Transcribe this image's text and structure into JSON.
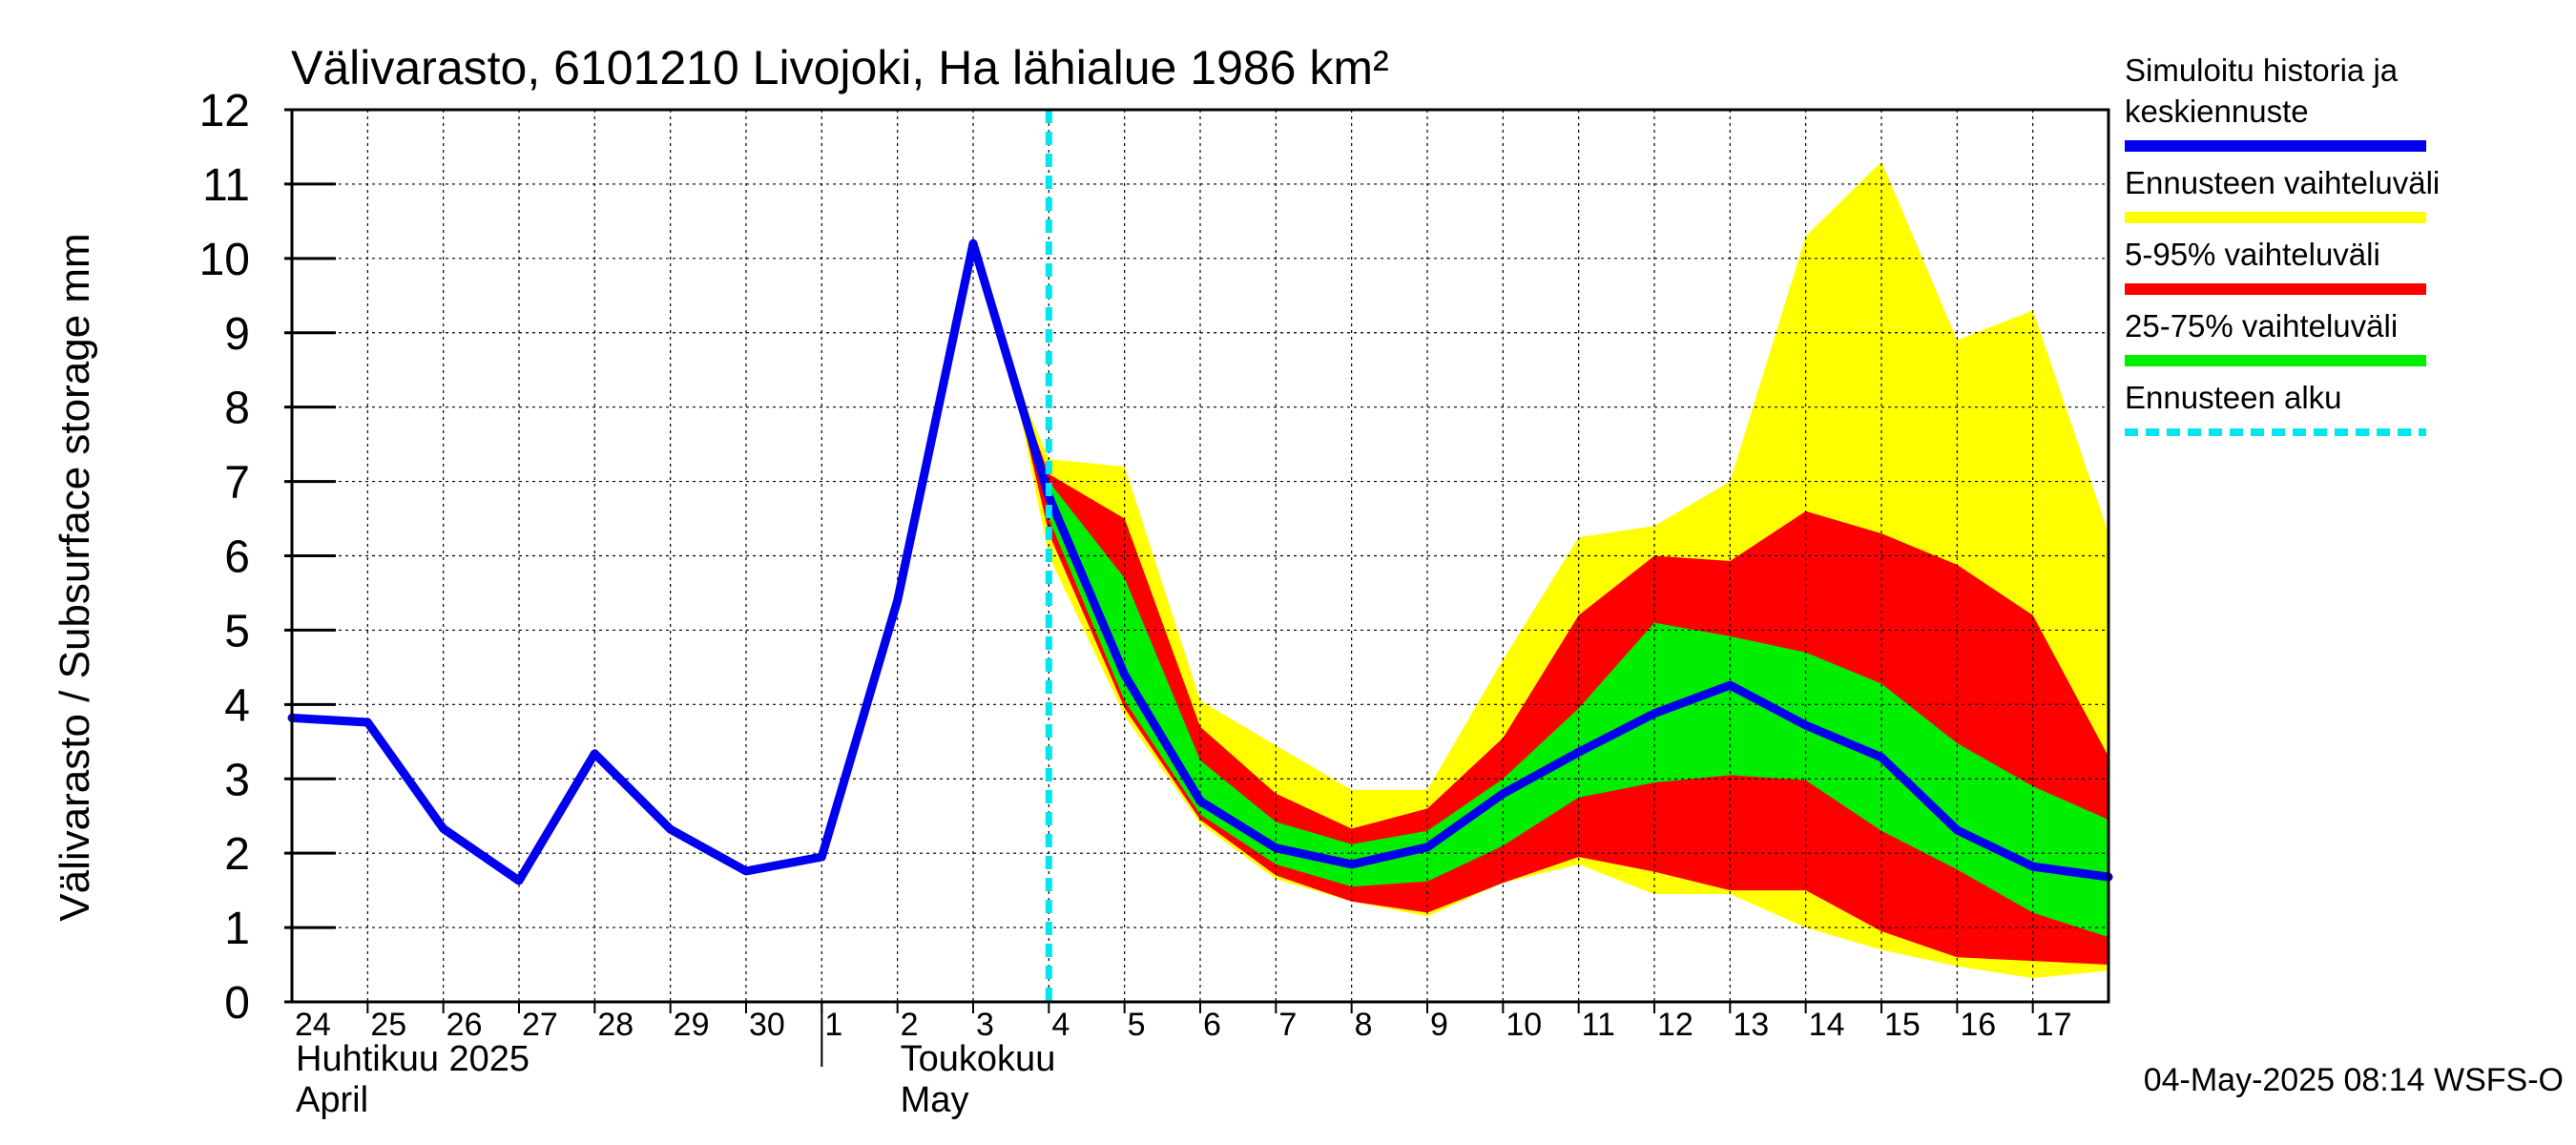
{
  "chart_data": {
    "type": "area",
    "title": "Välivarasto, 6101210 Livojoki, Ha lähialue 1986 km²",
    "ylabel": "Välivarasto / Subsurface storage  mm",
    "ylim": [
      0,
      12
    ],
    "yticks": [
      0,
      1,
      2,
      3,
      4,
      5,
      6,
      7,
      8,
      9,
      10,
      11,
      12
    ],
    "xlim": [
      0,
      24
    ],
    "x_tick_labels": [
      "24",
      "25",
      "26",
      "27",
      "28",
      "29",
      "30",
      "1",
      "2",
      "3",
      "4",
      "5",
      "6",
      "7",
      "8",
      "9",
      "10",
      "11",
      "12",
      "13",
      "14",
      "15",
      "16",
      "17"
    ],
    "month_labels": [
      {
        "fi": "Huhtikuu  2025",
        "en": "April"
      },
      {
        "fi": "Toukokuu",
        "en": "May"
      }
    ],
    "month_boundary_x": 7,
    "forecast_start_x": 10.0,
    "timestamp": "04-May-2025 08:14 WSFS-O",
    "grid": true,
    "legend": {
      "placement": "right",
      "items": [
        {
          "label_lines": [
            "Simuloitu historia ja",
            "keskiennuste"
          ],
          "color": "#0000ee",
          "style": "solid"
        },
        {
          "label_lines": [
            "Ennusteen vaihteluväli"
          ],
          "color": "#ffff00",
          "style": "solid"
        },
        {
          "label_lines": [
            "5-95% vaihteluväli"
          ],
          "color": "#ff0000",
          "style": "solid"
        },
        {
          "label_lines": [
            "25-75% vaihteluväli"
          ],
          "color": "#00ee00",
          "style": "solid"
        },
        {
          "label_lines": [
            "Ennusteen alku"
          ],
          "color": "#00e5ee",
          "style": "dashed"
        }
      ]
    },
    "series": [
      {
        "name": "Simuloitu historia ja keskiennuste",
        "color": "#0000ee",
        "x": [
          0,
          1,
          2,
          3,
          4,
          5,
          6,
          7,
          8,
          9,
          10,
          11,
          12,
          13,
          14,
          15,
          16,
          17,
          18,
          19,
          20,
          21,
          22,
          23,
          24
        ],
        "values": [
          3.82,
          3.76,
          2.33,
          1.63,
          3.34,
          2.32,
          1.76,
          1.95,
          5.4,
          10.2,
          6.8,
          4.4,
          2.7,
          2.07,
          1.85,
          2.08,
          2.8,
          3.36,
          3.88,
          4.26,
          3.72,
          3.29,
          2.31,
          1.82,
          1.68
        ]
      }
    ],
    "bands": [
      {
        "name": "Ennusteen vaihteluväli",
        "color": "#ffff00",
        "x": [
          9.5,
          10,
          11,
          12,
          13,
          14,
          15,
          16,
          17,
          18,
          19,
          20,
          21,
          22,
          23,
          24
        ],
        "upper": [
          8.5,
          7.3,
          7.2,
          4.05,
          3.45,
          2.85,
          2.85,
          4.6,
          6.25,
          6.4,
          7.0,
          10.3,
          11.3,
          8.9,
          9.3,
          6.3
        ],
        "lower": [
          8.5,
          6.0,
          3.85,
          2.4,
          1.65,
          1.35,
          1.15,
          1.6,
          1.85,
          1.45,
          1.45,
          1.0,
          0.7,
          0.48,
          0.32,
          0.42
        ]
      },
      {
        "name": "5-95% vaihteluväli",
        "color": "#ff0000",
        "x": [
          9.5,
          10,
          11,
          12,
          13,
          14,
          15,
          16,
          17,
          18,
          19,
          20,
          21,
          22,
          23,
          24
        ],
        "upper": [
          8.5,
          7.1,
          6.5,
          3.7,
          2.8,
          2.33,
          2.6,
          3.55,
          5.2,
          6.0,
          5.93,
          6.6,
          6.3,
          5.88,
          5.2,
          3.3
        ],
        "lower": [
          8.5,
          6.3,
          3.95,
          2.45,
          1.7,
          1.35,
          1.2,
          1.6,
          1.95,
          1.75,
          1.5,
          1.5,
          0.95,
          0.6,
          0.55,
          0.5
        ]
      },
      {
        "name": "25-75% vaihteluväli",
        "color": "#00ee00",
        "x": [
          10,
          11,
          12,
          13,
          14,
          15,
          16,
          17,
          18,
          19,
          20,
          21,
          22,
          23,
          24
        ],
        "upper": [
          7.0,
          5.7,
          3.25,
          2.42,
          2.12,
          2.3,
          3.0,
          3.95,
          5.1,
          4.92,
          4.7,
          4.28,
          3.48,
          2.9,
          2.45
        ],
        "lower": [
          6.5,
          4.05,
          2.52,
          1.85,
          1.55,
          1.62,
          2.1,
          2.75,
          2.95,
          3.05,
          2.98,
          2.3,
          1.78,
          1.2,
          0.87
        ]
      }
    ]
  }
}
